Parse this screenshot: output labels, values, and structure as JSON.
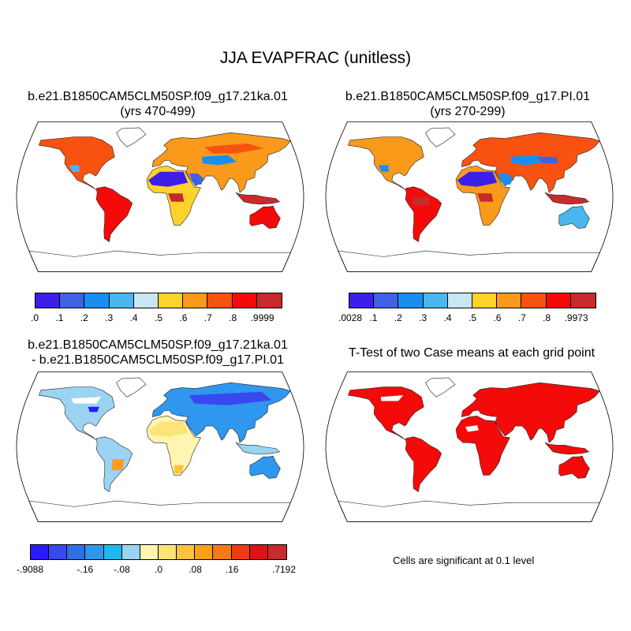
{
  "title": "JJA EVAPFRAC (unitless)",
  "panels": [
    {
      "id": "case1",
      "title_line1": "b.e21.B1850CAM5CLM50SP.f09_g17.21ka.01",
      "title_line2": "(yrs 470-499)",
      "colorbar": {
        "colors": [
          "#3c1fe8",
          "#3e62e3",
          "#1a8ef0",
          "#49b7ee",
          "#c9e6f5",
          "#fdd22b",
          "#f99a1b",
          "#f85210",
          "#f50a0a",
          "#c72b2b"
        ],
        "labels": [
          ".0",
          ".1",
          ".2",
          ".3",
          ".4",
          ".5",
          ".6",
          ".7",
          ".8",
          ".9999"
        ]
      }
    },
    {
      "id": "case2",
      "title_line1": "b.e21.B1850CAM5CLM50SP.f09_g17.PI.01",
      "title_line2": "(yrs 270-299)",
      "colorbar": {
        "colors": [
          "#3c1fe8",
          "#3e62e3",
          "#1a8ef0",
          "#49b7ee",
          "#c9e6f5",
          "#fdd22b",
          "#f99a1b",
          "#f85210",
          "#f50a0a",
          "#c72b2b"
        ],
        "labels": [
          ".0028",
          ".1",
          ".2",
          ".3",
          ".4",
          ".5",
          ".6",
          ".7",
          ".8",
          ".9973"
        ]
      }
    },
    {
      "id": "diff",
      "title_line1": "b.e21.B1850CAM5CLM50SP.f09_g17.21ka.01",
      "title_line2": "- b.e21.B1850CAM5CLM50SP.f09_g17.PI.01",
      "colorbar": {
        "colors": [
          "#2a1aff",
          "#3a48f0",
          "#2f6fe8",
          "#2f97ee",
          "#1fb8f0",
          "#9ad4f2",
          "#fff5b0",
          "#fde477",
          "#fdc23f",
          "#f8a018",
          "#f47a15",
          "#ef3b13",
          "#d81616",
          "#c72b2b"
        ],
        "labels": [
          "-.9088",
          "-.16",
          "-.08",
          ".0",
          ".08",
          ".16",
          ".7192"
        ]
      }
    },
    {
      "id": "ttest",
      "title_line1": "T-Test of two Case means at each grid point",
      "note": "Cells are significant at 0.1 level"
    }
  ]
}
